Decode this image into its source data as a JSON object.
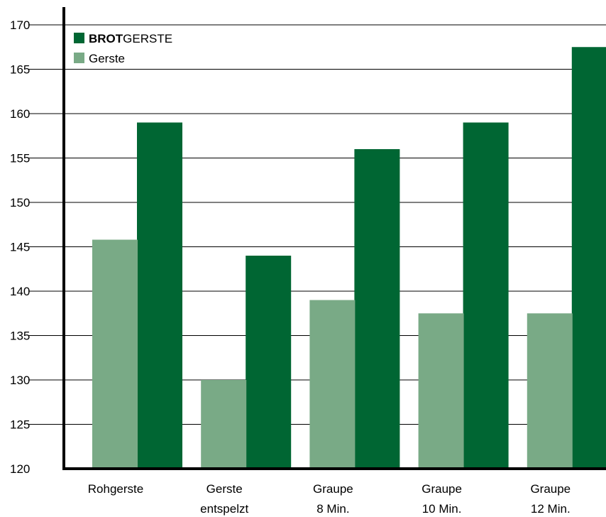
{
  "chart_data": {
    "type": "bar",
    "categories": [
      [
        "Rohgerste"
      ],
      [
        "Gerste",
        "entspelzt"
      ],
      [
        "Graupe",
        "8 Min."
      ],
      [
        "Graupe",
        "10 Min."
      ],
      [
        "Graupe",
        "12 Min."
      ]
    ],
    "series": [
      {
        "name": "Gerste",
        "color": "#79aa86",
        "values": [
          145.8,
          130.0,
          139.0,
          137.5,
          137.5
        ]
      },
      {
        "name_bold": "BROT",
        "name_rest": "GERSTE",
        "color": "#006633",
        "values": [
          159.0,
          144.0,
          156.0,
          159.0,
          167.5
        ]
      }
    ],
    "ylim": [
      120,
      170
    ],
    "yticks": [
      120,
      125,
      130,
      135,
      140,
      145,
      150,
      155,
      160,
      165,
      170
    ],
    "grid": true,
    "legend": "top-left",
    "title": "",
    "xlabel": "",
    "ylabel": ""
  }
}
